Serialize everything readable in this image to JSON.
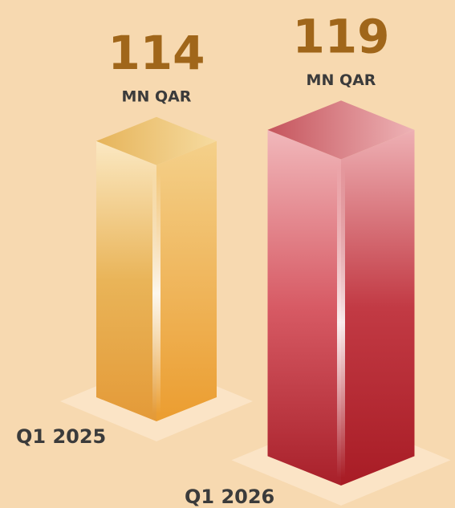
{
  "chart_data": {
    "type": "bar3d",
    "categories": [
      "Q1 2025",
      "Q1 2026"
    ],
    "values": [
      114,
      119
    ],
    "unit": "MN QAR",
    "series_colors": [
      "gold",
      "red"
    ]
  }
}
